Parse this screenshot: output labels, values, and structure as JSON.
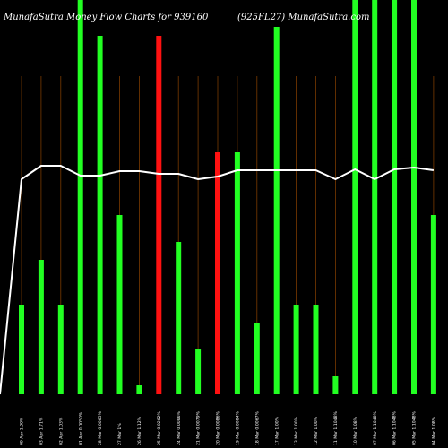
{
  "header": {
    "left_title": "MunafaSutra  Money Flow  Charts for 939160",
    "right_title": "(925FL27) MunafaSutra.com"
  },
  "chart_data": {
    "type": "bar",
    "title": "MunafaSutra  Money Flow  Charts for 939160 (925FL27) MunafaSutra.com",
    "categories": [
      "Wed 09 Apr 2025",
      "Thu 03 Apr 2025",
      "Wed 02 Apr 2025",
      "Tue 01 Apr 2025",
      "Fri 28 Mar 2025",
      "Thu 27 Mar 2025",
      "Wed 26 Mar 2025",
      "Tue 25 Mar 2025",
      "Mon 24 Mar 2025",
      "Fri 21 Mar 2025",
      "Thu 20 Mar 2025",
      "Wed 19 Mar 2025",
      "Tue 18 Mar 2025",
      "Mon 17 Mar 2025",
      "Fri 13 Mar 2025",
      "Wed 12 Mar 2025",
      "Tue 11 Mar 2025",
      "Mon 10 Mar 2025",
      "Fri 07 Mar 2025",
      "Thu 06 Mar 2025",
      "Wed 05 Mar 2025",
      "Tue 04 Mar 2025"
    ],
    "tick_labels": [
      "09 Apr 1.00%",
      "03 Apr 1.71%",
      "02 Apr 1.03%",
      "01 Apr 0.0050%",
      "28 Mar 0.0065%",
      "27 Mar 1%",
      "26 Mar 1.12%",
      "25 Mar 0.0262%",
      "24 Mar 0.0066%",
      "21 Mar 0.0079%",
      "20 Mar 0.0086%",
      "19 Mar 0.0084%",
      "18 Mar 0.0067%",
      "17 Mar 1.00%",
      "13 Mar 1.00%",
      "12 Mar 1.00%",
      "11 Mar 1.1048%",
      "10 Mar 1.08%",
      "07 Mar 1.1048%",
      "06 Mar 1.1048%",
      "05 Mar 1.1048%",
      "04 Mar 1.08%"
    ],
    "series": [
      {
        "values": [
          100,
          150,
          100,
          440,
          400,
          200,
          10,
          400,
          170,
          50,
          270,
          270,
          80,
          410,
          100,
          100,
          20,
          440,
          440,
          440,
          440,
          200
        ],
        "colors": [
          "green",
          "green",
          "green",
          "green",
          "green",
          "green",
          "green",
          "red",
          "green",
          "green",
          "red",
          "green",
          "green",
          "green",
          "green",
          "green",
          "green",
          "green",
          "green",
          "green",
          "green",
          "green"
        ]
      },
      {
        "type": "line",
        "values": [
          240,
          255,
          255,
          244,
          244,
          249,
          249,
          246,
          246,
          240,
          243,
          250,
          250,
          250,
          250,
          250,
          240,
          251,
          240,
          251,
          253,
          250
        ]
      }
    ],
    "ylim": [
      0,
      440
    ],
    "grid": true,
    "colors": {
      "green": "#22ff22",
      "red": "#ff1111",
      "line": "#ffffff",
      "grid": "#7a3a00",
      "background": "#000000"
    }
  }
}
